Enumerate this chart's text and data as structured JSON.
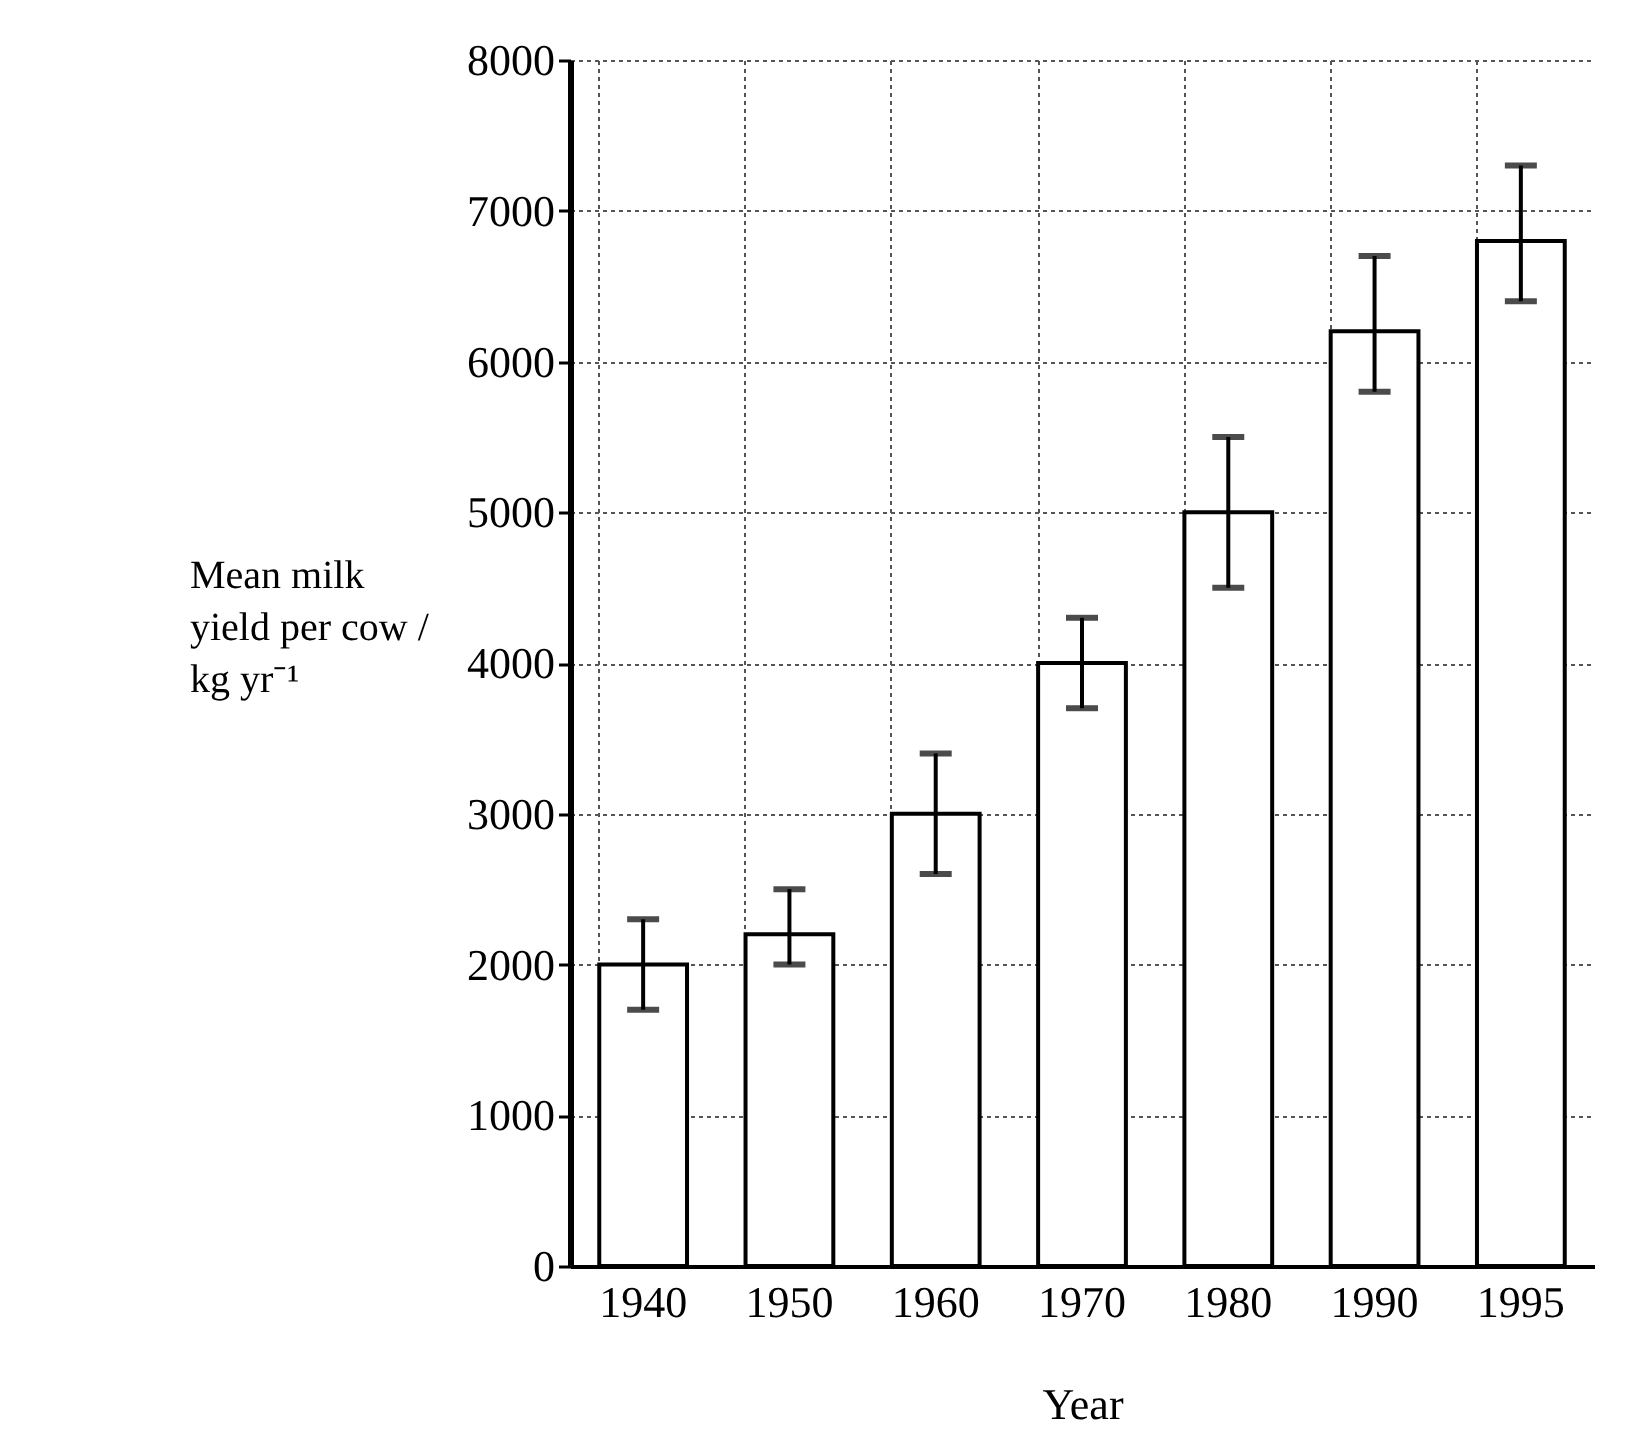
{
  "chart_data": {
    "type": "bar",
    "xlabel": "Year",
    "ylabel": "Mean milk yield per cow / kg yr⁻¹",
    "categories": [
      "1940",
      "1950",
      "1960",
      "1970",
      "1980",
      "1990",
      "1995"
    ],
    "values": [
      2000,
      2200,
      3000,
      4000,
      5000,
      6200,
      6800
    ],
    "errors": [
      [
        1700,
        2300
      ],
      [
        2000,
        2500
      ],
      [
        2600,
        3400
      ],
      [
        3700,
        4300
      ],
      [
        4500,
        5500
      ],
      [
        5800,
        6700
      ],
      [
        6400,
        7300
      ]
    ],
    "color": "#ffffff",
    "ylim": [
      0,
      8000
    ],
    "yticks": [
      0,
      1000,
      2000,
      3000,
      4000,
      5000,
      6000,
      7000,
      8000
    ],
    "grid": true
  }
}
